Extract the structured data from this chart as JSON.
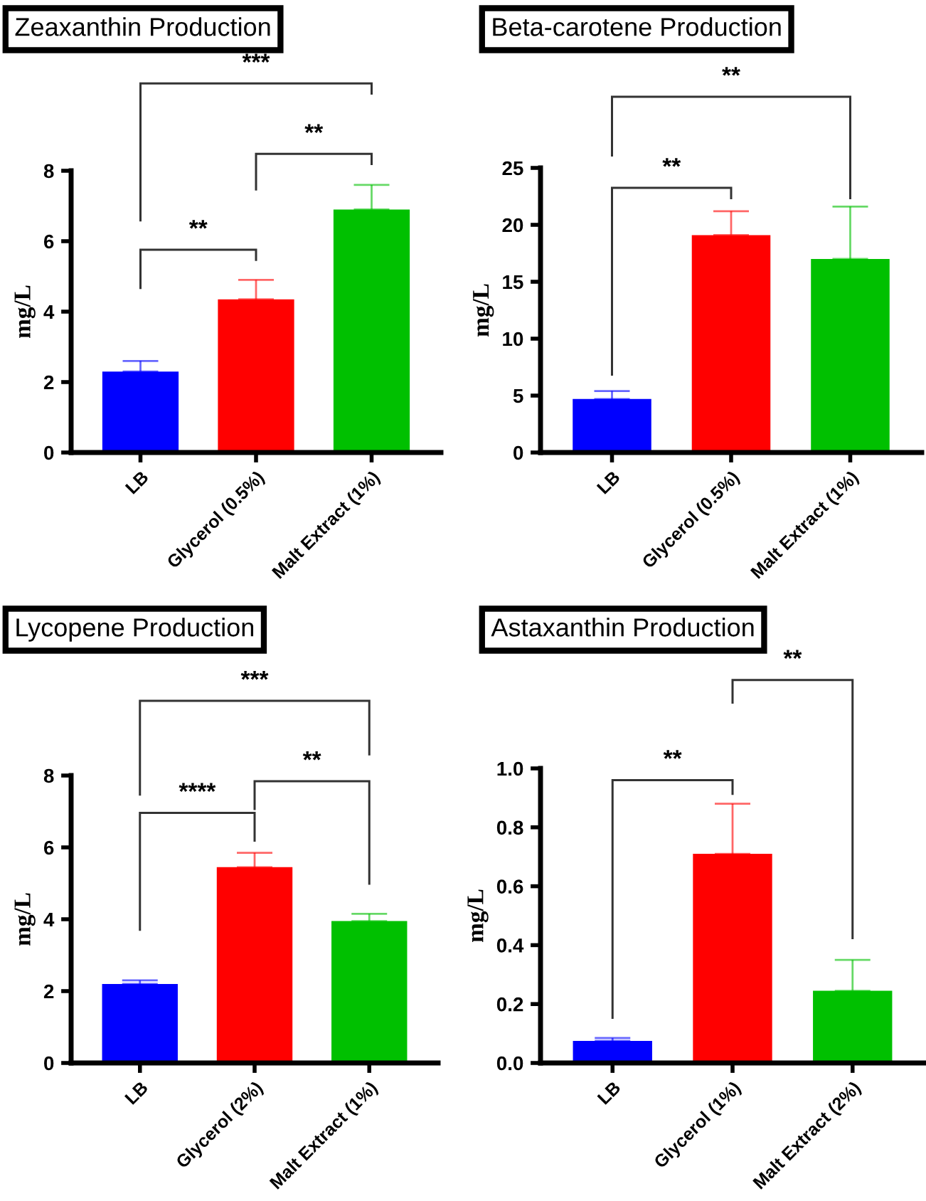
{
  "chart_data": [
    {
      "type": "bar",
      "title": "Zeaxanthin Production",
      "ylabel": "mg/L",
      "categories": [
        "LB",
        "Glycerol (0.5%)",
        "Malt Extract (1%)"
      ],
      "values": [
        2.3,
        4.35,
        6.9
      ],
      "errors": [
        0.3,
        0.55,
        0.7
      ],
      "colors": [
        "#0000ff",
        "#ff0000",
        "#00c000"
      ],
      "ylim": [
        0,
        8
      ],
      "yticks": [
        0,
        2,
        4,
        6,
        8
      ],
      "grid": false,
      "annotations": [
        "**",
        "**",
        "***"
      ]
    },
    {
      "type": "bar",
      "title": "Beta-carotene Production",
      "ylabel": "mg/L",
      "categories": [
        "LB",
        "Glycerol (0.5%)",
        "Malt Extract (1%)"
      ],
      "values": [
        4.7,
        19.1,
        17.0
      ],
      "errors": [
        0.7,
        2.1,
        4.6
      ],
      "colors": [
        "#0000ff",
        "#ff0000",
        "#00c000"
      ],
      "ylim": [
        0,
        25
      ],
      "yticks": [
        0,
        5,
        10,
        15,
        20,
        25
      ],
      "grid": false,
      "annotations": [
        "**",
        "**"
      ]
    },
    {
      "type": "bar",
      "title": "Lycopene Production",
      "ylabel": "mg/L",
      "categories": [
        "LB",
        "Glycerol (2%)",
        "Malt Extract (1%)"
      ],
      "values": [
        2.2,
        5.45,
        3.95
      ],
      "errors": [
        0.1,
        0.4,
        0.2
      ],
      "colors": [
        "#0000ff",
        "#ff0000",
        "#00c000"
      ],
      "ylim": [
        0,
        8
      ],
      "yticks": [
        0,
        2,
        4,
        6,
        8
      ],
      "grid": false,
      "annotations": [
        "****",
        "**",
        "***"
      ]
    },
    {
      "type": "bar",
      "title": "Astaxanthin Production",
      "ylabel": "mg/L",
      "categories": [
        "LB",
        "Glycerol (1%)",
        "Malt Extract (2%)"
      ],
      "values": [
        0.075,
        0.71,
        0.245
      ],
      "errors": [
        0.01,
        0.17,
        0.105
      ],
      "colors": [
        "#0000ff",
        "#ff0000",
        "#00c000"
      ],
      "ylim": [
        0,
        1.0
      ],
      "yticks": [
        {
          "value": 0,
          "label": "0.0"
        },
        {
          "value": 0.2,
          "label": "0.2"
        },
        {
          "value": 0.4,
          "label": "0.4"
        },
        {
          "value": 0.6,
          "label": "0.6"
        },
        {
          "value": 0.8,
          "label": "0.8"
        },
        {
          "value": 1.0,
          "label": "1.0"
        }
      ],
      "grid": false,
      "annotations": [
        "**",
        "**"
      ]
    }
  ]
}
